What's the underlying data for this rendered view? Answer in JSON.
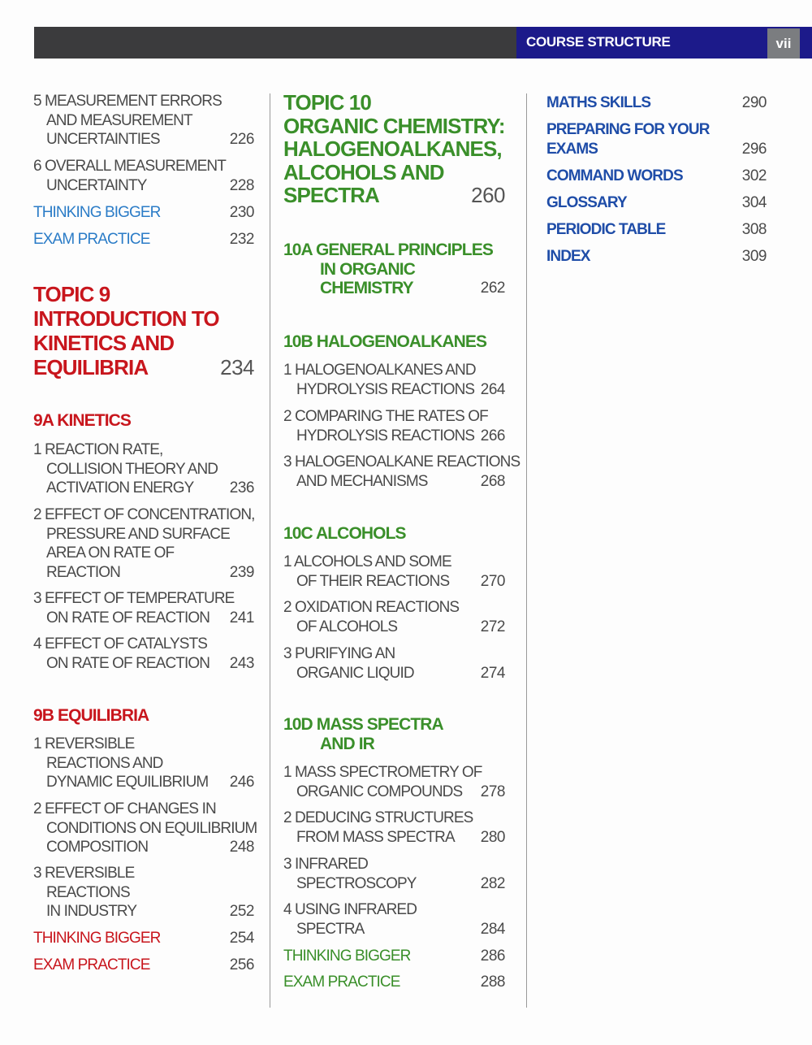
{
  "header": {
    "title": "COURSE STRUCTURE",
    "page_number": "vii"
  },
  "colors": {
    "red": "#c8161d",
    "green": "#3a8f2a",
    "blue": "#1f4da8",
    "light_blue": "#2b7cc7",
    "header_blue": "#1c1a8a"
  },
  "columns": [
    {
      "entries": [
        {
          "kind": "item",
          "lines": [
            "5 MEASUREMENT ERRORS",
            "AND MEASUREMENT",
            "UNCERTAINTIES"
          ],
          "page": "226"
        },
        {
          "kind": "item",
          "lines": [
            "6 OVERALL MEASUREMENT",
            "UNCERTAINTY"
          ],
          "page": "228"
        },
        {
          "kind": "link-blue",
          "lines": [
            "THINKING BIGGER"
          ],
          "page": "230"
        },
        {
          "kind": "link-blue",
          "lines": [
            "EXAM PRACTICE"
          ],
          "page": "232"
        },
        {
          "kind": "topic-red",
          "lines": [
            "TOPIC 9",
            "INTRODUCTION TO",
            "KINETICS AND",
            "EQUILIBRIA"
          ],
          "page": "234"
        },
        {
          "kind": "section-red",
          "lines": [
            "9A KINETICS"
          ],
          "page": ""
        },
        {
          "kind": "item",
          "lines": [
            "1 REACTION RATE,",
            "COLLISION THEORY AND",
            "ACTIVATION ENERGY"
          ],
          "page": "236"
        },
        {
          "kind": "item",
          "lines": [
            "2 EFFECT OF CONCENTRATION,",
            "PRESSURE AND SURFACE",
            "AREA ON RATE OF",
            "REACTION"
          ],
          "page": "239"
        },
        {
          "kind": "item",
          "lines": [
            "3 EFFECT OF TEMPERATURE",
            "ON RATE OF REACTION"
          ],
          "page": "241"
        },
        {
          "kind": "item",
          "lines": [
            "4 EFFECT OF CATALYSTS",
            "ON RATE OF REACTION"
          ],
          "page": "243"
        },
        {
          "kind": "section-red",
          "lines": [
            "9B EQUILIBRIA"
          ],
          "page": ""
        },
        {
          "kind": "item",
          "lines": [
            "1 REVERSIBLE",
            "REACTIONS AND",
            "DYNAMIC EQUILIBRIUM"
          ],
          "page": "246"
        },
        {
          "kind": "item",
          "lines": [
            "2 EFFECT OF CHANGES IN",
            "CONDITIONS ON EQUILIBRIUM",
            "COMPOSITION"
          ],
          "page": "248"
        },
        {
          "kind": "item",
          "lines": [
            "3 REVERSIBLE",
            "REACTIONS",
            "IN INDUSTRY"
          ],
          "page": "252"
        },
        {
          "kind": "link-red",
          "lines": [
            "THINKING BIGGER"
          ],
          "page": "254"
        },
        {
          "kind": "link-red",
          "lines": [
            "EXAM PRACTICE"
          ],
          "page": "256"
        }
      ]
    },
    {
      "entries": [
        {
          "kind": "topic-green",
          "lines": [
            "TOPIC 10",
            "ORGANIC CHEMISTRY:",
            "HALOGENOALKANES,",
            "ALCOHOLS AND",
            "SPECTRA"
          ],
          "page": "260"
        },
        {
          "kind": "section-green",
          "lines": [
            "10A GENERAL PRINCIPLES",
            "IN ORGANIC",
            "CHEMISTRY"
          ],
          "page": "262"
        },
        {
          "kind": "section-green",
          "lines": [
            "10B HALOGENOALKANES"
          ],
          "page": ""
        },
        {
          "kind": "item",
          "lines": [
            "1 HALOGENOALKANES AND",
            "HYDROLYSIS REACTIONS"
          ],
          "page": "264"
        },
        {
          "kind": "item",
          "lines": [
            "2 COMPARING THE RATES OF",
            "HYDROLYSIS REACTIONS"
          ],
          "page": "266"
        },
        {
          "kind": "item",
          "lines": [
            "3 HALOGENOALKANE REACTIONS",
            "AND MECHANISMS"
          ],
          "page": "268"
        },
        {
          "kind": "section-green",
          "lines": [
            "10C ALCOHOLS"
          ],
          "page": ""
        },
        {
          "kind": "item",
          "lines": [
            "1 ALCOHOLS AND SOME",
            "OF THEIR REACTIONS"
          ],
          "page": "270"
        },
        {
          "kind": "item",
          "lines": [
            "2 OXIDATION REACTIONS",
            "OF ALCOHOLS"
          ],
          "page": "272"
        },
        {
          "kind": "item",
          "lines": [
            "3 PURIFYING AN",
            "ORGANIC LIQUID"
          ],
          "page": "274"
        },
        {
          "kind": "section-green",
          "lines": [
            "10D MASS SPECTRA",
            "AND IR"
          ],
          "page": ""
        },
        {
          "kind": "item",
          "lines": [
            "1 MASS SPECTROMETRY OF",
            "ORGANIC COMPOUNDS"
          ],
          "page": "278"
        },
        {
          "kind": "item",
          "lines": [
            "2 DEDUCING STRUCTURES",
            "FROM MASS SPECTRA"
          ],
          "page": "280"
        },
        {
          "kind": "item",
          "lines": [
            "3 INFRARED",
            "SPECTROSCOPY"
          ],
          "page": "282"
        },
        {
          "kind": "item",
          "lines": [
            "4 USING INFRARED",
            "SPECTRA"
          ],
          "page": "284"
        },
        {
          "kind": "link-green",
          "lines": [
            "THINKING BIGGER"
          ],
          "page": "286"
        },
        {
          "kind": "link-green",
          "lines": [
            "EXAM PRACTICE"
          ],
          "page": "288"
        }
      ]
    },
    {
      "entries": [
        {
          "kind": "nav",
          "lines": [
            "MATHS SKILLS"
          ],
          "page": "290"
        },
        {
          "kind": "nav",
          "lines": [
            "PREPARING FOR YOUR",
            "EXAMS"
          ],
          "page": "296"
        },
        {
          "kind": "nav",
          "lines": [
            "COMMAND WORDS"
          ],
          "page": "302"
        },
        {
          "kind": "nav",
          "lines": [
            "GLOSSARY"
          ],
          "page": "304"
        },
        {
          "kind": "nav",
          "lines": [
            "PERIODIC TABLE"
          ],
          "page": "308"
        },
        {
          "kind": "nav",
          "lines": [
            "INDEX"
          ],
          "page": "309"
        }
      ]
    }
  ]
}
